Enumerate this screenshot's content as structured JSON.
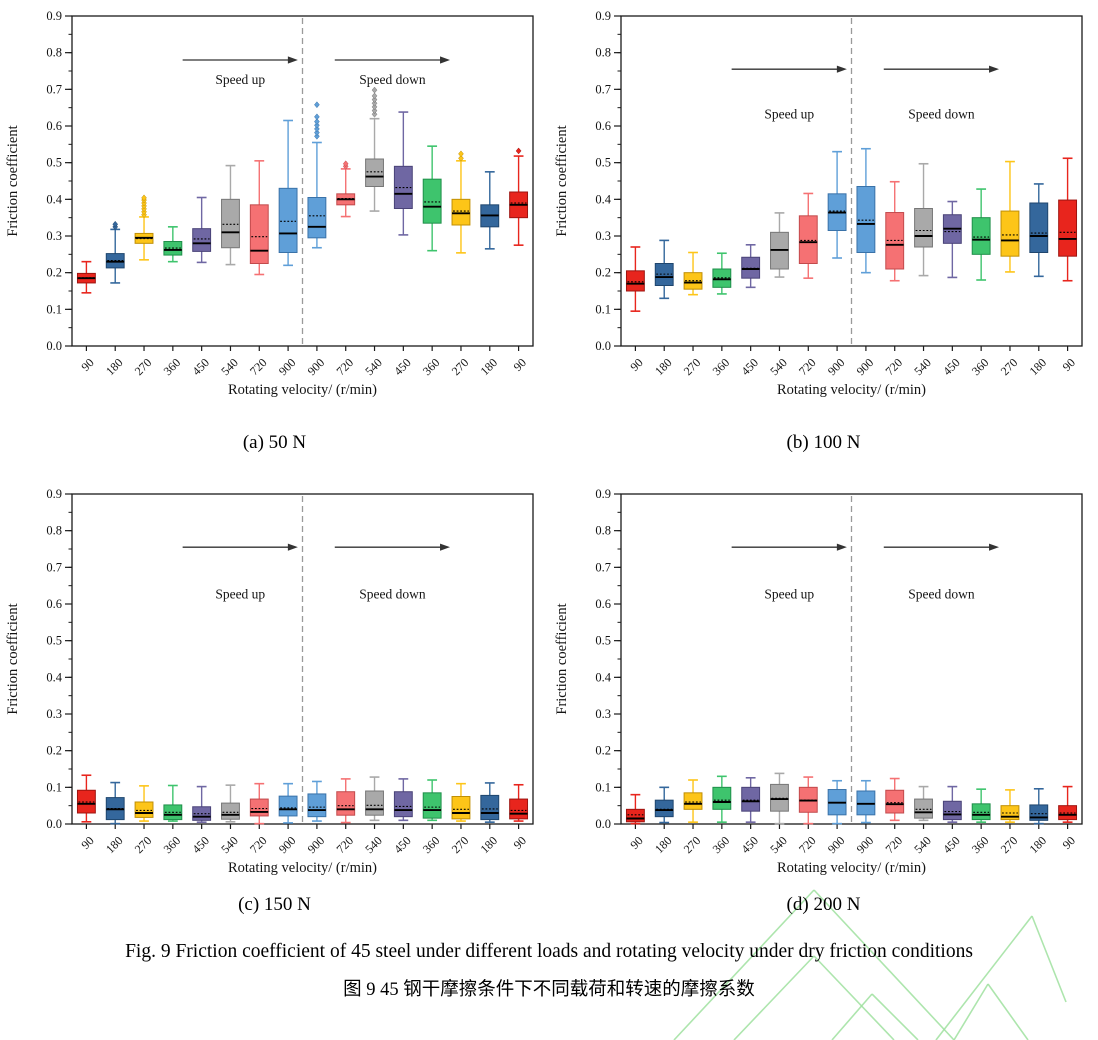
{
  "figure": {
    "caption_en": "Fig. 9 Friction coefficient of 45 steel under different loads and rotating velocity under dry friction conditions",
    "caption_zh": "图 9 45 钢干摩擦条件下不同载荷和转速的摩擦系数"
  },
  "palette": {
    "red": {
      "fill": "#e8251d",
      "stroke": "#9e1410"
    },
    "blue": {
      "fill": "#34679c",
      "stroke": "#1f466e"
    },
    "yellow": {
      "fill": "#fdc518",
      "stroke": "#c08f06"
    },
    "green": {
      "fill": "#3ec46d",
      "stroke": "#1f8f4a"
    },
    "purple": {
      "fill": "#6f67a3",
      "stroke": "#4a4378"
    },
    "gray": {
      "fill": "#a9a9a9",
      "stroke": "#777777"
    },
    "salmon": {
      "fill": "#f57173",
      "stroke": "#c24a4c"
    },
    "lightblue": {
      "fill": "#5f9fd8",
      "stroke": "#3a72a8"
    }
  },
  "box_color_sequence": [
    "red",
    "blue",
    "yellow",
    "green",
    "purple",
    "gray",
    "salmon",
    "lightblue",
    "lightblue",
    "salmon",
    "gray",
    "purple",
    "green",
    "yellow",
    "blue",
    "red"
  ],
  "watermark_color": "#9fe09f",
  "box_value_order": "low, q1, median, mean, q3, high, outliers[]",
  "chart_data": [
    {
      "type": "box",
      "subplot_label": "(a) 50 N",
      "xlabel": "Rotating velocity/ (r/min)",
      "ylabel": "Friction coefficient",
      "ylim": [
        0.0,
        0.9
      ],
      "ytick_major": 0.1,
      "ytick_minor": 0.05,
      "grid": false,
      "categories": [
        "90",
        "180",
        "270",
        "360",
        "450",
        "540",
        "720",
        "900",
        "900",
        "720",
        "540",
        "450",
        "360",
        "270",
        "180",
        "90"
      ],
      "annotations": {
        "speed_up": "Speed up",
        "speed_down": "Speed down",
        "arrow_y": 0.78,
        "label_y": 0.715
      },
      "boxes": [
        [
          0.145,
          0.172,
          0.185,
          0.186,
          0.198,
          0.23,
          []
        ],
        [
          0.172,
          0.213,
          0.23,
          0.233,
          0.252,
          0.318,
          [
            0.325,
            0.332
          ]
        ],
        [
          0.235,
          0.28,
          0.295,
          0.293,
          0.307,
          0.352,
          [
            0.358,
            0.366,
            0.374,
            0.382,
            0.39,
            0.398,
            0.404
          ]
        ],
        [
          0.23,
          0.248,
          0.262,
          0.267,
          0.285,
          0.325,
          []
        ],
        [
          0.228,
          0.258,
          0.28,
          0.292,
          0.32,
          0.405,
          []
        ],
        [
          0.222,
          0.268,
          0.31,
          0.332,
          0.4,
          0.492,
          []
        ],
        [
          0.195,
          0.225,
          0.26,
          0.298,
          0.385,
          0.505,
          []
        ],
        [
          0.22,
          0.255,
          0.307,
          0.34,
          0.43,
          0.615,
          []
        ],
        [
          0.268,
          0.295,
          0.325,
          0.355,
          0.405,
          0.555,
          [
            0.572,
            0.582,
            0.592,
            0.602,
            0.612,
            0.625,
            0.658
          ]
        ],
        [
          0.353,
          0.385,
          0.4,
          0.402,
          0.415,
          0.483,
          [
            0.49,
            0.497
          ]
        ],
        [
          0.368,
          0.435,
          0.462,
          0.475,
          0.51,
          0.62,
          [
            0.632,
            0.642,
            0.652,
            0.662,
            0.672,
            0.682,
            0.698
          ]
        ],
        [
          0.303,
          0.375,
          0.415,
          0.432,
          0.49,
          0.638,
          []
        ],
        [
          0.26,
          0.335,
          0.38,
          0.393,
          0.455,
          0.545,
          []
        ],
        [
          0.254,
          0.33,
          0.362,
          0.368,
          0.4,
          0.505,
          [
            0.512,
            0.524
          ]
        ],
        [
          0.265,
          0.325,
          0.356,
          0.357,
          0.385,
          0.475,
          []
        ],
        [
          0.275,
          0.35,
          0.385,
          0.39,
          0.42,
          0.518,
          [
            0.532
          ]
        ]
      ]
    },
    {
      "type": "box",
      "subplot_label": "(b) 100 N",
      "xlabel": "Rotating velocity/ (r/min)",
      "ylabel": "Friction coefficient",
      "ylim": [
        0.0,
        0.9
      ],
      "ytick_major": 0.1,
      "ytick_minor": 0.05,
      "grid": false,
      "categories": [
        "90",
        "180",
        "270",
        "360",
        "450",
        "540",
        "720",
        "900",
        "900",
        "720",
        "540",
        "450",
        "360",
        "270",
        "180",
        "90"
      ],
      "annotations": {
        "speed_up": "Speed up",
        "speed_down": "Speed down",
        "arrow_y": 0.755,
        "label_y": 0.62
      },
      "boxes": [
        [
          0.095,
          0.15,
          0.17,
          0.175,
          0.205,
          0.27,
          []
        ],
        [
          0.13,
          0.165,
          0.188,
          0.196,
          0.225,
          0.288,
          []
        ],
        [
          0.14,
          0.155,
          0.173,
          0.178,
          0.2,
          0.255,
          []
        ],
        [
          0.142,
          0.16,
          0.182,
          0.186,
          0.21,
          0.253,
          []
        ],
        [
          0.16,
          0.185,
          0.21,
          0.212,
          0.242,
          0.276,
          []
        ],
        [
          0.188,
          0.21,
          0.262,
          0.262,
          0.31,
          0.363,
          []
        ],
        [
          0.185,
          0.225,
          0.283,
          0.288,
          0.355,
          0.416,
          []
        ],
        [
          0.24,
          0.315,
          0.364,
          0.368,
          0.415,
          0.53,
          []
        ],
        [
          0.2,
          0.255,
          0.333,
          0.343,
          0.435,
          0.538,
          []
        ],
        [
          0.178,
          0.21,
          0.276,
          0.288,
          0.364,
          0.448,
          []
        ],
        [
          0.192,
          0.27,
          0.3,
          0.315,
          0.375,
          0.497,
          []
        ],
        [
          0.187,
          0.28,
          0.32,
          0.312,
          0.358,
          0.394,
          []
        ],
        [
          0.18,
          0.25,
          0.29,
          0.297,
          0.35,
          0.428,
          []
        ],
        [
          0.202,
          0.245,
          0.288,
          0.303,
          0.368,
          0.503,
          []
        ],
        [
          0.19,
          0.255,
          0.3,
          0.308,
          0.39,
          0.442,
          []
        ],
        [
          0.178,
          0.245,
          0.292,
          0.31,
          0.398,
          0.512,
          []
        ]
      ]
    },
    {
      "type": "box",
      "subplot_label": "(c) 150 N",
      "xlabel": "Rotating velocity/ (r/min)",
      "ylabel": "Friction coefficient",
      "ylim": [
        0.0,
        0.9
      ],
      "ytick_major": 0.1,
      "ytick_minor": 0.05,
      "grid": false,
      "categories": [
        "90",
        "180",
        "270",
        "360",
        "450",
        "540",
        "720",
        "900",
        "900",
        "720",
        "540",
        "450",
        "360",
        "270",
        "180",
        "90"
      ],
      "annotations": {
        "speed_up": "Speed up",
        "speed_down": "Speed down",
        "arrow_y": 0.755,
        "label_y": 0.615
      },
      "boxes": [
        [
          0.006,
          0.03,
          0.055,
          0.06,
          0.092,
          0.133,
          []
        ],
        [
          0.001,
          0.012,
          0.04,
          0.042,
          0.072,
          0.113,
          []
        ],
        [
          0.008,
          0.018,
          0.03,
          0.037,
          0.06,
          0.104,
          []
        ],
        [
          0.008,
          0.012,
          0.025,
          0.032,
          0.052,
          0.105,
          []
        ],
        [
          0.005,
          0.01,
          0.02,
          0.028,
          0.047,
          0.102,
          []
        ],
        [
          0.006,
          0.013,
          0.025,
          0.032,
          0.057,
          0.106,
          []
        ],
        [
          0.001,
          0.022,
          0.033,
          0.042,
          0.068,
          0.11,
          []
        ],
        [
          0.003,
          0.022,
          0.04,
          0.044,
          0.076,
          0.11,
          []
        ],
        [
          0.008,
          0.02,
          0.038,
          0.046,
          0.082,
          0.116,
          []
        ],
        [
          0.004,
          0.024,
          0.04,
          0.05,
          0.088,
          0.123,
          []
        ],
        [
          0.01,
          0.024,
          0.04,
          0.051,
          0.09,
          0.128,
          []
        ],
        [
          0.01,
          0.02,
          0.038,
          0.048,
          0.088,
          0.123,
          []
        ],
        [
          0.01,
          0.016,
          0.038,
          0.046,
          0.085,
          0.12,
          []
        ],
        [
          0.008,
          0.014,
          0.03,
          0.04,
          0.075,
          0.11,
          []
        ],
        [
          0.005,
          0.012,
          0.03,
          0.041,
          0.078,
          0.112,
          []
        ],
        [
          0.008,
          0.014,
          0.028,
          0.037,
          0.068,
          0.107,
          []
        ]
      ]
    },
    {
      "type": "box",
      "subplot_label": "(d) 200 N",
      "xlabel": "Rotating velocity/ (r/min)",
      "ylabel": "Friction coefficient",
      "ylim": [
        0.0,
        0.9
      ],
      "ytick_major": 0.1,
      "ytick_minor": 0.05,
      "grid": false,
      "categories": [
        "90",
        "180",
        "270",
        "360",
        "450",
        "540",
        "720",
        "900",
        "900",
        "720",
        "540",
        "450",
        "360",
        "270",
        "180",
        "90"
      ],
      "annotations": {
        "speed_up": "Speed up",
        "speed_down": "Speed down",
        "arrow_y": 0.755,
        "label_y": 0.615
      },
      "boxes": [
        [
          0.001,
          0.006,
          0.015,
          0.025,
          0.04,
          0.08,
          []
        ],
        [
          0.004,
          0.02,
          0.038,
          0.04,
          0.065,
          0.1,
          []
        ],
        [
          0.005,
          0.04,
          0.055,
          0.06,
          0.085,
          0.12,
          []
        ],
        [
          0.005,
          0.04,
          0.06,
          0.065,
          0.1,
          0.13,
          []
        ],
        [
          0.005,
          0.035,
          0.062,
          0.065,
          0.1,
          0.126,
          []
        ],
        [
          0.001,
          0.035,
          0.068,
          0.07,
          0.108,
          0.138,
          []
        ],
        [
          0.001,
          0.032,
          0.064,
          0.065,
          0.1,
          0.128,
          []
        ],
        [
          0.001,
          0.025,
          0.058,
          0.058,
          0.094,
          0.118,
          []
        ],
        [
          0.004,
          0.025,
          0.055,
          0.055,
          0.09,
          0.118,
          []
        ],
        [
          0.01,
          0.03,
          0.054,
          0.058,
          0.092,
          0.124,
          []
        ],
        [
          0.01,
          0.016,
          0.032,
          0.04,
          0.068,
          0.102,
          []
        ],
        [
          0.005,
          0.012,
          0.026,
          0.034,
          0.062,
          0.102,
          []
        ],
        [
          0.005,
          0.012,
          0.025,
          0.032,
          0.055,
          0.095,
          []
        ],
        [
          0.005,
          0.012,
          0.02,
          0.03,
          0.05,
          0.093,
          []
        ],
        [
          0.001,
          0.01,
          0.018,
          0.028,
          0.052,
          0.096,
          []
        ],
        [
          0.005,
          0.012,
          0.025,
          0.03,
          0.05,
          0.102,
          []
        ]
      ]
    }
  ]
}
